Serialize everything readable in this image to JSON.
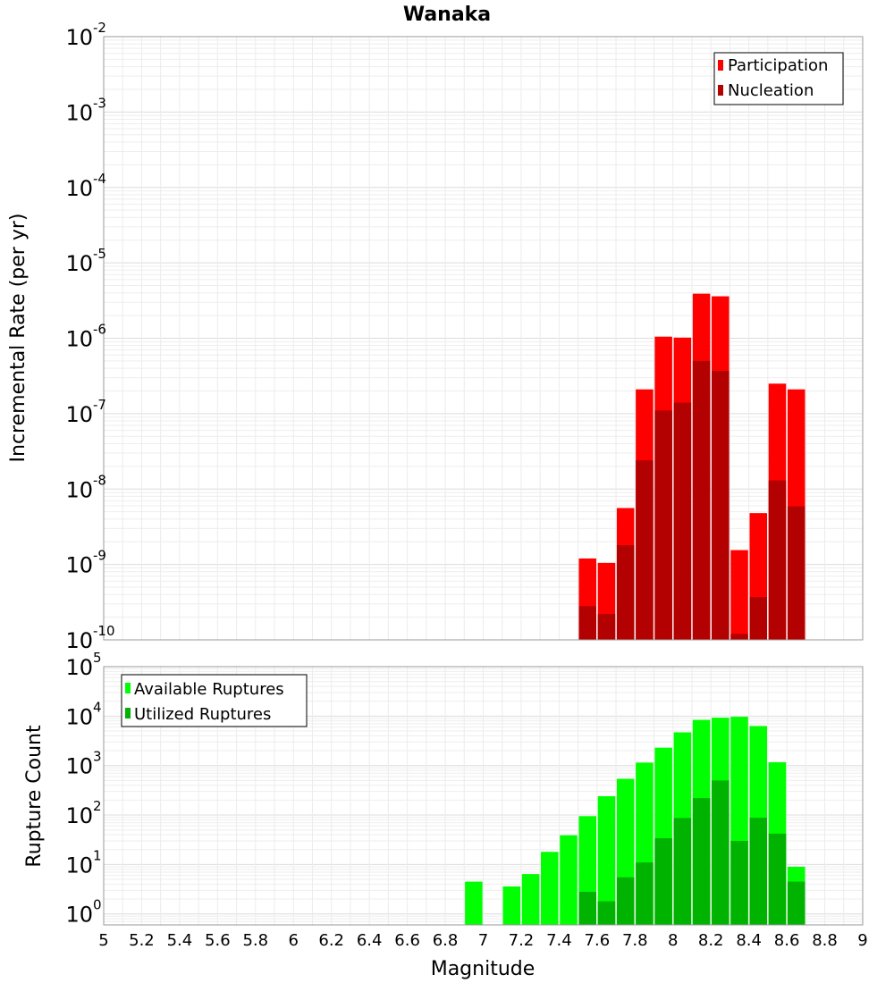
{
  "chart_data": [
    {
      "type": "bar",
      "title": "Wanaka",
      "xlabel": "",
      "ylabel": "Incremental Rate (per yr)",
      "yscale": "log",
      "ylim": [
        1e-10,
        0.01
      ],
      "xlim": [
        5,
        9
      ],
      "yticks": [
        {
          "base": "10",
          "exp": "-10",
          "value": 1e-10
        },
        {
          "base": "10",
          "exp": "-9",
          "value": 1e-09
        },
        {
          "base": "10",
          "exp": "-8",
          "value": 1e-08
        },
        {
          "base": "10",
          "exp": "-7",
          "value": 1e-07
        },
        {
          "base": "10",
          "exp": "-6",
          "value": 1e-06
        },
        {
          "base": "10",
          "exp": "-5",
          "value": 1e-05
        },
        {
          "base": "10",
          "exp": "-4",
          "value": 0.0001
        },
        {
          "base": "10",
          "exp": "-3",
          "value": 0.001
        },
        {
          "base": "10",
          "exp": "-2",
          "value": 0.01
        }
      ],
      "grid": true,
      "legend_position": "top-right",
      "x": [
        7.55,
        7.65,
        7.75,
        7.85,
        7.95,
        8.05,
        8.15,
        8.25,
        8.35,
        8.45,
        8.55,
        8.65
      ],
      "series": [
        {
          "name": "Participation",
          "color": "#ff0000",
          "values": [
            1.2e-09,
            1.05e-09,
            5.6e-09,
            2.1e-07,
            1.05e-06,
            1.02e-06,
            3.9e-06,
            3.6e-06,
            1.55e-09,
            4.8e-09,
            2.5e-07,
            2.1e-07
          ]
        },
        {
          "name": "Nucleation",
          "color": "#b30000",
          "values": [
            2.8e-10,
            2.2e-10,
            1.8e-09,
            2.4e-08,
            1.1e-07,
            1.4e-07,
            5e-07,
            3.7e-07,
            1.2e-10,
            3.7e-10,
            1.3e-08,
            5.9e-09
          ]
        }
      ]
    },
    {
      "type": "bar",
      "title": "",
      "xlabel": "Magnitude",
      "ylabel": "Rupture Count",
      "yscale": "log",
      "ylim": [
        0.6,
        100000.0
      ],
      "xlim": [
        5,
        9
      ],
      "yticks": [
        {
          "base": "10",
          "exp": "0",
          "value": 1
        },
        {
          "base": "10",
          "exp": "1",
          "value": 10
        },
        {
          "base": "10",
          "exp": "2",
          "value": 100
        },
        {
          "base": "10",
          "exp": "3",
          "value": 1000
        },
        {
          "base": "10",
          "exp": "4",
          "value": 10000
        },
        {
          "base": "10",
          "exp": "5",
          "value": 100000
        }
      ],
      "xticks": [
        "5",
        "5.2",
        "5.4",
        "5.6",
        "5.8",
        "6",
        "6.2",
        "6.4",
        "6.6",
        "6.8",
        "7",
        "7.2",
        "7.4",
        "7.6",
        "7.8",
        "8",
        "8.2",
        "8.4",
        "8.6",
        "8.8",
        "9"
      ],
      "grid": true,
      "legend_position": "top-left",
      "x": [
        6.95,
        7.15,
        7.25,
        7.35,
        7.45,
        7.55,
        7.65,
        7.75,
        7.85,
        7.95,
        8.05,
        8.15,
        8.25,
        8.35,
        8.45,
        8.55,
        8.65
      ],
      "series": [
        {
          "name": "Available Ruptures",
          "color": "#00ff00",
          "values": [
            4.5,
            3.6,
            6.4,
            18,
            39,
            95,
            240,
            540,
            1150,
            2300,
            4700,
            8400,
            9300,
            9700,
            6300,
            1170,
            9
          ]
        },
        {
          "name": "Utilized Ruptures",
          "color": "#00b300",
          "values": [
            null,
            null,
            null,
            null,
            null,
            2.8,
            1.8,
            5.5,
            11,
            34,
            87,
            220,
            500,
            30,
            88,
            42,
            4.5
          ]
        }
      ]
    }
  ]
}
